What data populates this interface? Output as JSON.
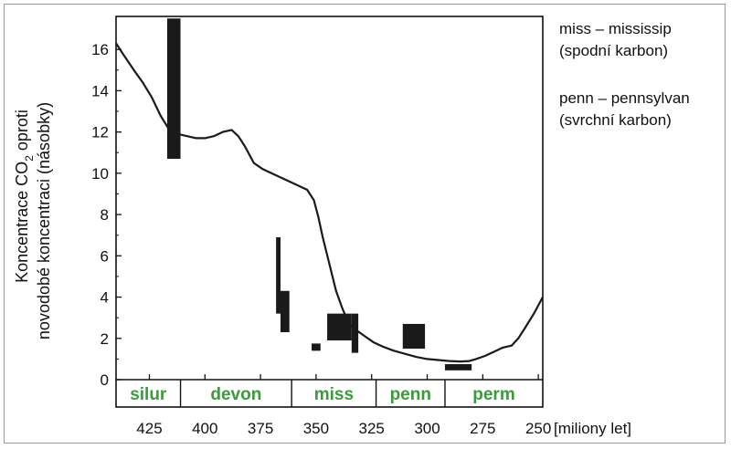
{
  "chart_data": {
    "type": "line",
    "ylabel_line1": "Koncentrace CO",
    "ylabel_sub": "2",
    "ylabel_line1_rest": " oproti",
    "ylabel_line2": "novodobé koncentraci (násobky)",
    "xlabel": "[miliony let]",
    "xlim": [
      440,
      248
    ],
    "ylim": [
      0,
      17.6
    ],
    "yticks": [
      0,
      2,
      4,
      6,
      8,
      10,
      12,
      14,
      16
    ],
    "xticks": [
      425,
      400,
      375,
      350,
      325,
      300,
      275,
      250
    ],
    "curve": {
      "x": [
        440,
        437,
        432,
        428,
        424,
        420,
        416,
        412,
        408,
        404,
        400,
        396,
        392,
        388,
        385,
        382,
        378,
        374,
        370,
        366,
        362,
        358,
        354,
        351,
        349,
        347,
        344,
        341,
        338,
        335,
        332,
        328,
        324,
        320,
        315,
        310,
        305,
        300,
        295,
        290,
        285,
        281,
        278,
        274,
        270,
        266,
        262,
        259,
        256,
        252,
        248
      ],
      "y": [
        16.3,
        15.8,
        15.0,
        14.4,
        13.7,
        12.8,
        12.1,
        11.9,
        11.8,
        11.7,
        11.7,
        11.8,
        12.0,
        12.1,
        11.8,
        11.3,
        10.5,
        10.2,
        10.0,
        9.8,
        9.6,
        9.4,
        9.2,
        8.7,
        7.9,
        6.9,
        5.6,
        4.3,
        3.4,
        2.7,
        2.4,
        2.1,
        1.8,
        1.6,
        1.4,
        1.25,
        1.1,
        1.0,
        0.95,
        0.9,
        0.88,
        0.9,
        1.0,
        1.15,
        1.35,
        1.55,
        1.65,
        2.0,
        2.5,
        3.2,
        4.0
      ]
    },
    "ranges": [
      {
        "x1": 417,
        "x2": 411,
        "y1": 10.7,
        "y2": 17.5
      },
      {
        "x1": 368,
        "x2": 366,
        "y1": 3.2,
        "y2": 6.9
      },
      {
        "x1": 366,
        "x2": 362,
        "y1": 2.3,
        "y2": 4.3
      },
      {
        "x1": 352,
        "x2": 348,
        "y1": 1.4,
        "y2": 1.75
      },
      {
        "x1": 345,
        "x2": 334,
        "y1": 1.9,
        "y2": 3.2
      },
      {
        "x1": 334,
        "x2": 331,
        "y1": 1.3,
        "y2": 3.2
      },
      {
        "x1": 311,
        "x2": 301,
        "y1": 1.5,
        "y2": 2.7
      },
      {
        "x1": 292,
        "x2": 280,
        "y1": 0.45,
        "y2": 0.75
      }
    ],
    "periods": [
      {
        "name": "silur",
        "start": 440,
        "end": 411
      },
      {
        "name": "devon",
        "start": 411,
        "end": 361
      },
      {
        "name": "miss",
        "start": 361,
        "end": 323
      },
      {
        "name": "penn",
        "start": 323,
        "end": 292
      },
      {
        "name": "perm",
        "start": 292,
        "end": 248
      }
    ],
    "colors": {
      "curve": "#1a1a1a",
      "bars": "#1a1a1a",
      "period_text": "#3a9b3a"
    }
  },
  "notes": {
    "miss_line1": "miss – mississip",
    "miss_line2": "(spodní karbon)",
    "penn_line1": "penn – pennsylvan",
    "penn_line2": "(svrchní karbon)"
  }
}
